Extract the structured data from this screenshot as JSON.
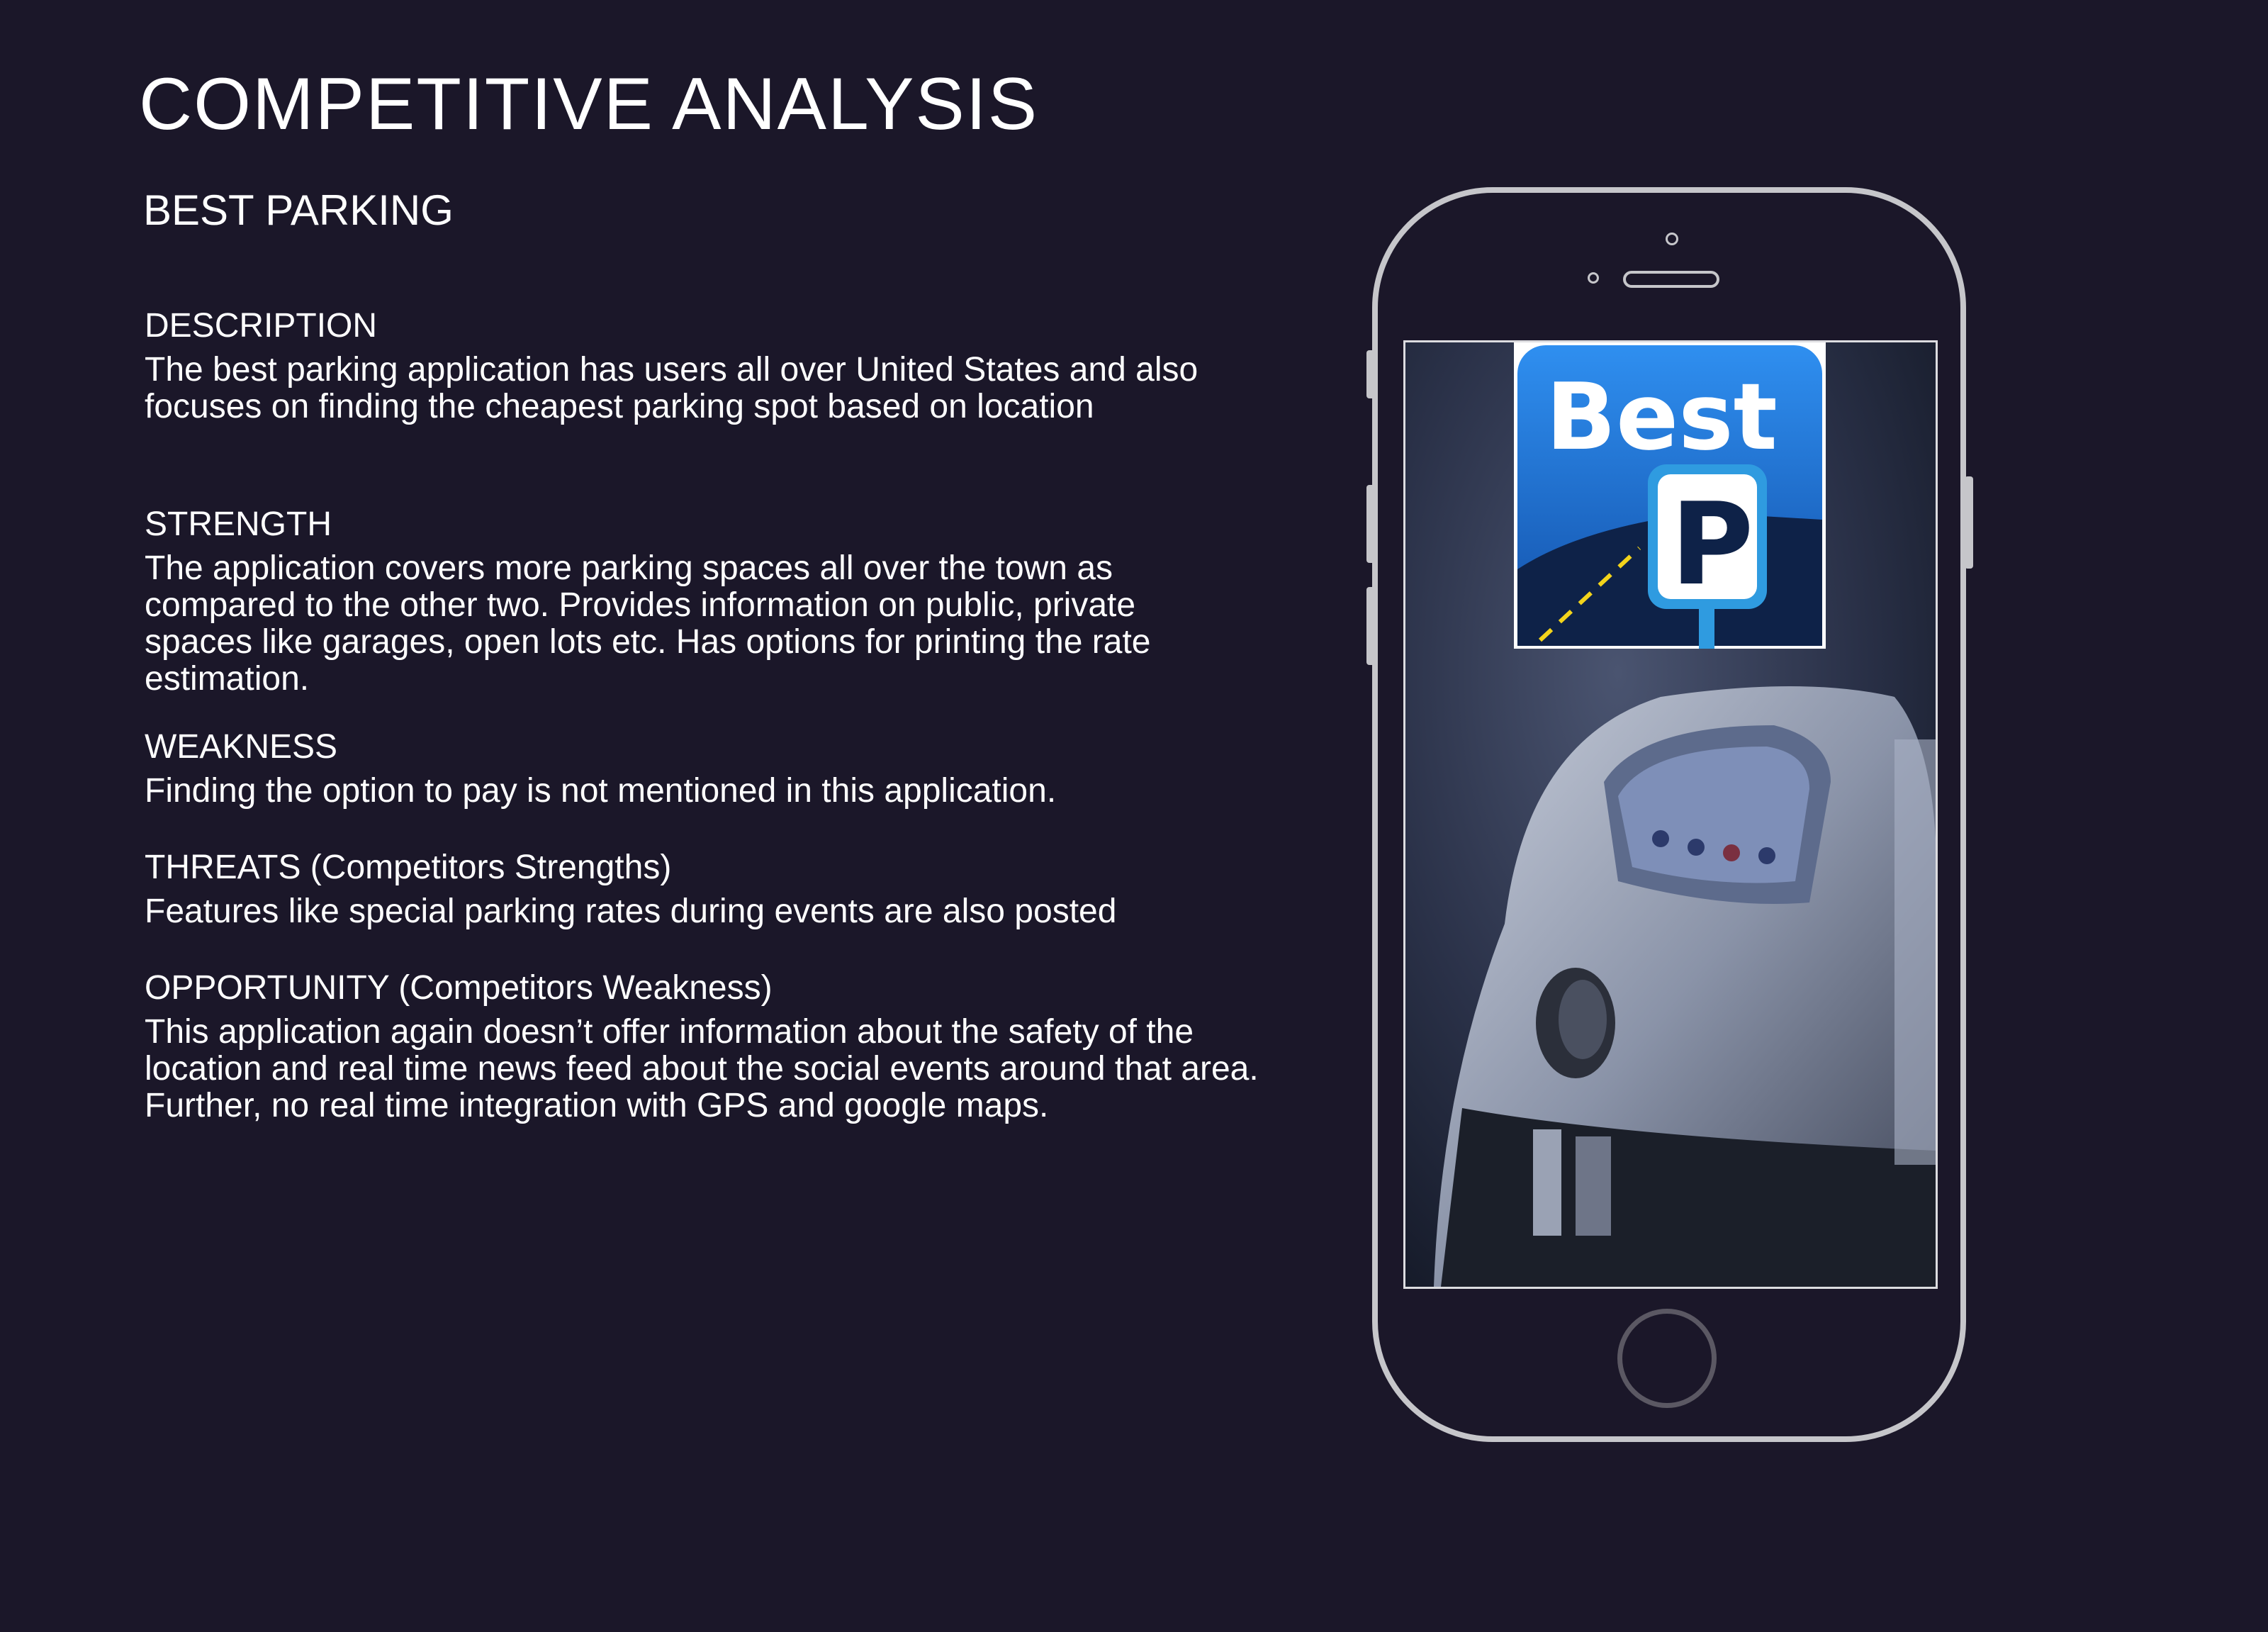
{
  "page": {
    "title": "COMPETITIVE ANALYSIS",
    "product_name": "BEST PARKING"
  },
  "sections": {
    "description": {
      "heading": "DESCRIPTION",
      "body": "The best parking application has users all over United States and also focuses on finding the cheapest parking spot based on location"
    },
    "strength": {
      "heading": "STRENGTH",
      "body": "The application covers more parking spaces all over the town as compared to the other two. Provides information on public, private spaces like garages, open lots etc. Has options for printing the rate estimation."
    },
    "weakness": {
      "heading": "WEAKNESS",
      "body": "Finding the option to pay is not mentioned in this application."
    },
    "threats": {
      "heading": "THREATS (Competitors Strengths)",
      "body": "Features like special parking rates during events are also posted"
    },
    "opportunity": {
      "heading": "OPPORTUNITY (Competitors Weakness)",
      "body": "This application again doesn’t offer information about the safety of the location and real time news feed about the social events around that area. Further, no real time integration with GPS and google maps."
    }
  },
  "phone": {
    "logo_word": "Best",
    "logo_letter": "P"
  },
  "colors": {
    "background": "#1b1729",
    "text": "#ffffff",
    "phone_frame": "#c6c6ca",
    "logo_blue": "#1d6fd6"
  }
}
